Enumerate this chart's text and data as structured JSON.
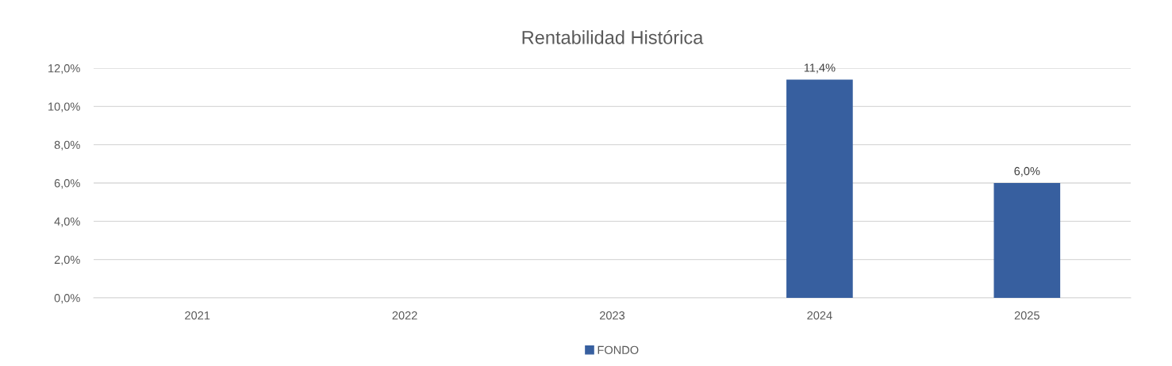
{
  "chart_data": {
    "type": "bar",
    "title": "Rentabilidad Histórica",
    "categories": [
      "2021",
      "2022",
      "2023",
      "2024",
      "2025"
    ],
    "series": [
      {
        "name": "FONDO",
        "color": "#375f9f",
        "values": [
          null,
          null,
          null,
          11.4,
          6.0
        ],
        "value_labels": [
          null,
          null,
          null,
          "11,4%",
          "6,0%"
        ]
      }
    ],
    "ylim": [
      0,
      12
    ],
    "yticks": [
      {
        "value": 0,
        "label": "0,0%"
      },
      {
        "value": 2,
        "label": "2,0%"
      },
      {
        "value": 4,
        "label": "4,0%"
      },
      {
        "value": 6,
        "label": "6,0%"
      },
      {
        "value": 8,
        "label": "8,0%"
      },
      {
        "value": 10,
        "label": "10,0%"
      },
      {
        "value": 12,
        "label": "12,0%"
      }
    ],
    "grid": "y",
    "legend": "bottom"
  }
}
